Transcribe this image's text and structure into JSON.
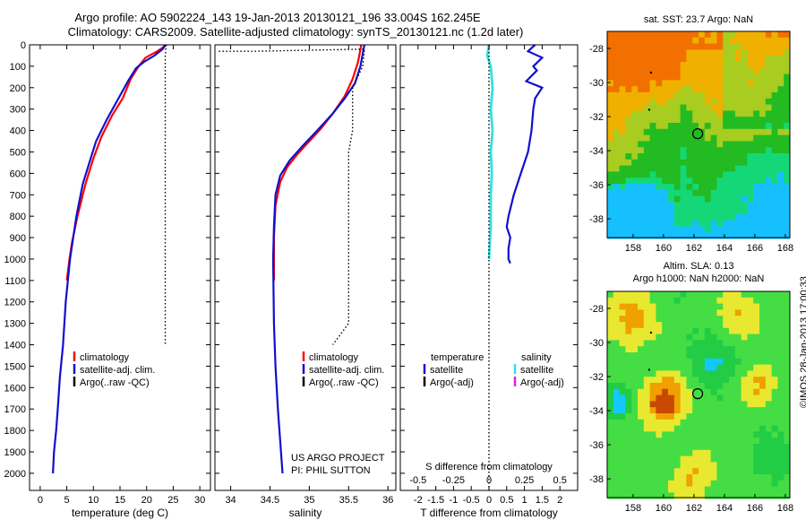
{
  "header": {
    "line1": "Argo profile: AO 5902224_143 19-Jan-2013 20130121_196 33.004S 162.245E",
    "line2": "Climatology: CARS2009. Satellite-adjusted climatology: synTS_20130121.nc (1.2d later)"
  },
  "credits": {
    "project": "US ARGO PROJECT",
    "pi": "PI: PHIL SUTTON"
  },
  "watermark": "©IMOS 28-Jan-2013 17:00:33",
  "colors": {
    "climatology": "#ff0000",
    "satellite": "#1010d0",
    "argo": "#000000",
    "sal_satellite": "#33e0e0",
    "sal_argo": "#e020e0"
  },
  "chart_data": [
    {
      "type": "line",
      "id": "temperature",
      "xlabel": "temperature (deg C)",
      "ylabel": "",
      "xlim": [
        -2,
        32
      ],
      "ylim": [
        2080,
        0
      ],
      "xticks": [
        "0",
        "5",
        "10",
        "15",
        "20",
        "25",
        "30"
      ],
      "yticks": [
        "0",
        "100",
        "200",
        "300",
        "400",
        "500",
        "600",
        "700",
        "800",
        "900",
        "1000",
        "1100",
        "1200",
        "1300",
        "1400",
        "1500",
        "1600",
        "1700",
        "1800",
        "1900",
        "2000"
      ],
      "legend": [
        "climatology",
        "satellite-adj. clim.",
        "Argo(..raw -QC)"
      ],
      "series": [
        {
          "name": "climatology",
          "style": "solid",
          "color": "#ff0000",
          "x": [
            23.3,
            23.2,
            22.0,
            19.8,
            18.5,
            17.0,
            15.5,
            13.5,
            11.5,
            10.0,
            8.5,
            7.0,
            6.0,
            5.5,
            5.0
          ],
          "y": [
            0,
            10,
            30,
            60,
            100,
            160,
            250,
            330,
            430,
            530,
            650,
            800,
            920,
            1000,
            1100
          ]
        },
        {
          "name": "satellite-adj. clim.",
          "style": "solid",
          "color": "#1010d0",
          "x": [
            23.6,
            23.0,
            21.5,
            19.5,
            18.0,
            16.5,
            14.5,
            12.5,
            10.5,
            9.5,
            8.0,
            6.8,
            5.6,
            4.8,
            4.3,
            3.7,
            3.3,
            3.0,
            2.6,
            2.4
          ],
          "y": [
            0,
            20,
            50,
            80,
            110,
            170,
            260,
            350,
            450,
            530,
            650,
            800,
            1000,
            1200,
            1400,
            1550,
            1700,
            1800,
            1900,
            2000
          ]
        },
        {
          "name": "Argo(..raw -QC)",
          "style": "dotted",
          "color": "#000000",
          "x": [
            23.7,
            23.5,
            23.5,
            23.5,
            23.5,
            23.5,
            23.5
          ],
          "y": [
            0,
            50,
            300,
            600,
            900,
            1200,
            1400
          ]
        }
      ]
    },
    {
      "type": "line",
      "id": "salinity",
      "xlabel": "salinity",
      "ylabel": "",
      "xlim": [
        33.8,
        36.1
      ],
      "ylim": [
        2080,
        0
      ],
      "xticks": [
        "34",
        "34.5",
        "35",
        "35.5",
        "36"
      ],
      "legend": [
        "climatology",
        "satellite-adj. clim.",
        "Argo(..raw -QC)"
      ],
      "series": [
        {
          "name": "climatology",
          "style": "solid",
          "color": "#ff0000",
          "x": [
            35.66,
            35.62,
            35.55,
            35.45,
            35.3,
            35.15,
            35.0,
            34.85,
            34.72,
            34.63,
            34.57,
            34.55,
            34.55
          ],
          "y": [
            0,
            80,
            160,
            240,
            320,
            390,
            450,
            510,
            570,
            640,
            750,
            900,
            1100
          ]
        },
        {
          "name": "satellite-adj. clim.",
          "style": "solid",
          "color": "#1010d0",
          "x": [
            35.7,
            35.68,
            35.65,
            35.58,
            35.45,
            35.3,
            35.1,
            34.92,
            34.75,
            34.63,
            34.57,
            34.55,
            34.54,
            34.55,
            34.57,
            34.6,
            34.63,
            34.66
          ],
          "y": [
            0,
            40,
            100,
            180,
            250,
            320,
            400,
            470,
            540,
            610,
            700,
            850,
            1000,
            1300,
            1500,
            1700,
            1850,
            2000
          ]
        },
        {
          "name": "Argo(..raw -QC)",
          "style": "dotted",
          "color": "#000000",
          "x": [
            33.85,
            34.3,
            35.7,
            35.68,
            35.55,
            35.55,
            35.55,
            35.5,
            35.5,
            35.5,
            35.5,
            35.4,
            35.3
          ],
          "y": [
            30,
            30,
            20,
            100,
            200,
            300,
            400,
            500,
            700,
            1000,
            1300,
            1350,
            1400
          ]
        }
      ]
    },
    {
      "type": "line",
      "id": "difference",
      "xlabel": "T difference from climatology",
      "xlabel_top": "S difference from climatology",
      "xlim": [
        -2.5,
        2.5
      ],
      "ylim": [
        2080,
        0
      ],
      "xticks": [
        "-2",
        "-1.5",
        "-1",
        "-0.5",
        "0",
        "0.5",
        "1",
        "1.5",
        "2"
      ],
      "xticks_s": [
        "-0.5",
        "-0.25",
        "0",
        "0.25",
        "0.5"
      ],
      "legend_temperature": {
        "title": "temperature",
        "items": [
          "satellite",
          "Argo(-adj)"
        ]
      },
      "legend_salinity": {
        "title": "salinity",
        "items": [
          "satellite",
          "Argo(-adj)"
        ]
      },
      "series": [
        {
          "name": "satellite",
          "group": "temperature",
          "style": "solid",
          "color": "#1010d0",
          "x": [
            1.3,
            1.1,
            1.5,
            1.25,
            1.35,
            1.05,
            1.5,
            1.3,
            1.25,
            1.2,
            1.1,
            0.9,
            0.7,
            0.55,
            0.5,
            0.6,
            0.55,
            0.55,
            0.6
          ],
          "y": [
            0,
            30,
            60,
            100,
            120,
            170,
            200,
            250,
            300,
            400,
            500,
            600,
            700,
            800,
            850,
            900,
            950,
            1000,
            1020
          ]
        },
        {
          "name": "satellite",
          "group": "salinity",
          "style": "solid",
          "color": "#33e0e0",
          "x": [
            0.0,
            -0.05,
            0.05,
            0.1,
            0.05,
            0.1,
            0.05,
            0.08,
            0.05,
            0.05,
            0.0
          ],
          "y": [
            0,
            50,
            100,
            200,
            300,
            400,
            500,
            600,
            700,
            850,
            1000
          ]
        },
        {
          "name": "zero",
          "group": "reference",
          "style": "dotted",
          "color": "#000000",
          "x": [
            0,
            0
          ],
          "y": [
            0,
            2080
          ]
        }
      ]
    }
  ],
  "maps": [
    {
      "title": "sat. SST: 23.7  Argo: NaN",
      "xticks": [
        "158",
        "160",
        "162",
        "164",
        "166",
        "168"
      ],
      "yticks": [
        "-28",
        "-30",
        "-32",
        "-34",
        "-36",
        "-38"
      ],
      "marker": {
        "lon": 162.245,
        "lat": -33.004
      }
    },
    {
      "title1": "Altim. SLA: 0.13",
      "title2": "Argo h1000: NaN h2000: NaN",
      "xticks": [
        "158",
        "160",
        "162",
        "164",
        "166",
        "168"
      ],
      "yticks": [
        "-28",
        "-30",
        "-32",
        "-34",
        "-36",
        "-38"
      ],
      "marker": {
        "lon": 162.245,
        "lat": -33.004
      }
    }
  ]
}
